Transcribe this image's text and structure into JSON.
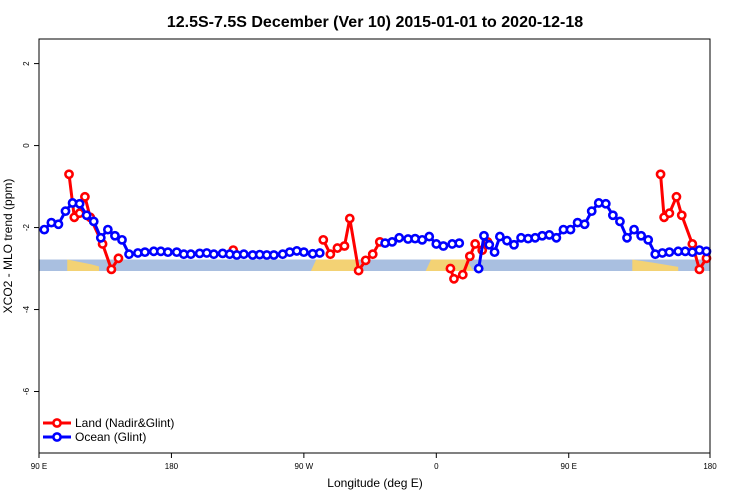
{
  "chart_data": {
    "type": "line",
    "title": "12.5S-7.5S December (Ver 10)   2015-01-01 to 2020-12-18",
    "xlabel": "Longitude (deg E)",
    "ylabel": "XCO2 - MLO trend (ppm)",
    "xlim": [
      90,
      470
    ],
    "ylim": [
      -7.5,
      2.6
    ],
    "x_ticks": [
      {
        "value": 90,
        "label": "90 E"
      },
      {
        "value": 165,
        "label": "180"
      },
      {
        "value": 240,
        "label": "90 W"
      },
      {
        "value": 315,
        "label": "0"
      },
      {
        "value": 390,
        "label": "90 E"
      },
      {
        "value": 470,
        "label": "180"
      }
    ],
    "y_ticks": [
      {
        "value": 2,
        "label": "2"
      },
      {
        "value": 0,
        "label": "0"
      },
      {
        "value": -2,
        "label": "-2"
      },
      {
        "value": -4,
        "label": "-4"
      },
      {
        "value": -6,
        "label": "-6"
      }
    ],
    "legend_position": "bottom-left",
    "land_band": {
      "y_top": -2.78,
      "y_bottom": -3.06,
      "color": "#a9bfe0"
    },
    "land_mask": {
      "color": "#f3d274",
      "segments": [
        {
          "x": [
            106,
            114,
            120,
            124
          ],
          "top": [
            -2.78,
            -2.85,
            -2.9,
            -2.95
          ]
        },
        {
          "x": [
            244,
            247,
            252,
            258,
            264,
            270,
            274
          ],
          "top": [
            -3.06,
            -2.78,
            -2.78,
            -2.78,
            -2.78,
            -2.78,
            -3.06
          ]
        },
        {
          "x": [
            309,
            312,
            320,
            327,
            332,
            336
          ],
          "top": [
            -3.06,
            -2.78,
            -2.78,
            -2.78,
            -2.78,
            -3.06
          ]
        },
        {
          "x": [
            426,
            432,
            438,
            444,
            452
          ],
          "top": [
            -2.78,
            -2.82,
            -2.86,
            -2.9,
            -2.96
          ]
        }
      ]
    },
    "series": [
      {
        "name": "Land (Nadir&Glint)",
        "color": "#ff0000",
        "points": [
          [
            107,
            -0.7
          ],
          [
            110,
            -1.75
          ],
          [
            113,
            -1.65
          ],
          [
            116,
            -1.25
          ],
          [
            119,
            -1.75
          ],
          [
            126,
            -2.4
          ],
          [
            131,
            -3.02
          ],
          [
            135,
            -2.75
          ],
          [
            200,
            -2.55
          ],
          [
            251,
            -2.3
          ],
          [
            255,
            -2.65
          ],
          [
            259,
            -2.5
          ],
          [
            263,
            -2.45
          ],
          [
            266,
            -1.78
          ],
          [
            271,
            -3.05
          ],
          [
            275,
            -2.8
          ],
          [
            279,
            -2.65
          ],
          [
            283,
            -2.35
          ],
          [
            323,
            -3.0
          ],
          [
            325,
            -3.25
          ],
          [
            330,
            -3.15
          ],
          [
            334,
            -2.7
          ],
          [
            337,
            -2.4
          ],
          [
            341,
            -2.55
          ],
          [
            344,
            -2.35
          ],
          [
            442,
            -0.7
          ],
          [
            444,
            -1.75
          ],
          [
            447,
            -1.65
          ],
          [
            451,
            -1.25
          ],
          [
            454,
            -1.7
          ],
          [
            460,
            -2.4
          ],
          [
            464,
            -3.02
          ],
          [
            468,
            -2.75
          ]
        ]
      },
      {
        "name": "Ocean (Glint)",
        "color": "#0000ff",
        "points": [
          [
            93,
            -2.05
          ],
          [
            97,
            -1.88
          ],
          [
            101,
            -1.92
          ],
          [
            105,
            -1.6
          ],
          [
            109,
            -1.4
          ],
          [
            113,
            -1.42
          ],
          [
            117,
            -1.7
          ],
          [
            121,
            -1.85
          ],
          [
            125,
            -2.25
          ],
          [
            129,
            -2.05
          ],
          [
            133,
            -2.2
          ],
          [
            137,
            -2.3
          ],
          [
            141,
            -2.65
          ],
          [
            146,
            -2.62
          ],
          [
            150,
            -2.6
          ],
          [
            155,
            -2.58
          ],
          [
            159,
            -2.58
          ],
          [
            163,
            -2.6
          ],
          [
            168,
            -2.6
          ],
          [
            172,
            -2.65
          ],
          [
            176,
            -2.65
          ],
          [
            181,
            -2.63
          ],
          [
            185,
            -2.62
          ],
          [
            189,
            -2.65
          ],
          [
            194,
            -2.63
          ],
          [
            198,
            -2.65
          ],
          [
            202,
            -2.67
          ],
          [
            206,
            -2.65
          ],
          [
            211,
            -2.67
          ],
          [
            215,
            -2.66
          ],
          [
            219,
            -2.67
          ],
          [
            223,
            -2.67
          ],
          [
            228,
            -2.65
          ],
          [
            232,
            -2.6
          ],
          [
            236,
            -2.57
          ],
          [
            240,
            -2.6
          ],
          [
            245,
            -2.64
          ],
          [
            249,
            -2.62
          ],
          [
            286,
            -2.38
          ],
          [
            290,
            -2.35
          ],
          [
            294,
            -2.25
          ],
          [
            299,
            -2.28
          ],
          [
            303,
            -2.27
          ],
          [
            307,
            -2.3
          ],
          [
            311,
            -2.22
          ],
          [
            315,
            -2.4
          ],
          [
            319,
            -2.45
          ],
          [
            324,
            -2.4
          ],
          [
            328,
            -2.38
          ],
          [
            339,
            -3.0
          ],
          [
            342,
            -2.2
          ],
          [
            345,
            -2.42
          ],
          [
            348,
            -2.6
          ],
          [
            351,
            -2.22
          ],
          [
            355,
            -2.32
          ],
          [
            359,
            -2.42
          ],
          [
            363,
            -2.25
          ],
          [
            367,
            -2.27
          ],
          [
            371,
            -2.25
          ],
          [
            375,
            -2.2
          ],
          [
            379,
            -2.18
          ],
          [
            383,
            -2.25
          ],
          [
            387,
            -2.05
          ],
          [
            391,
            -2.05
          ],
          [
            395,
            -1.88
          ],
          [
            399,
            -1.92
          ],
          [
            403,
            -1.6
          ],
          [
            407,
            -1.4
          ],
          [
            411,
            -1.42
          ],
          [
            415,
            -1.7
          ],
          [
            419,
            -1.85
          ],
          [
            423,
            -2.25
          ],
          [
            427,
            -2.05
          ],
          [
            431,
            -2.2
          ],
          [
            435,
            -2.3
          ],
          [
            439,
            -2.65
          ],
          [
            443,
            -2.62
          ],
          [
            447,
            -2.6
          ],
          [
            452,
            -2.58
          ],
          [
            456,
            -2.58
          ],
          [
            460,
            -2.6
          ],
          [
            464,
            -2.55
          ],
          [
            468,
            -2.58
          ]
        ]
      }
    ]
  }
}
